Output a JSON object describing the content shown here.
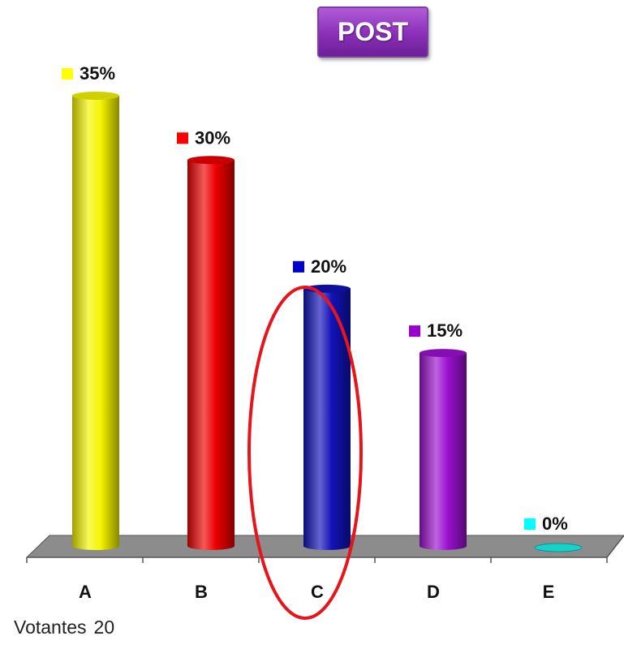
{
  "badge": {
    "label": "POST",
    "color": "#8a2fb8"
  },
  "chart_data": {
    "type": "bar",
    "categories": [
      "A",
      "B",
      "C",
      "D",
      "E"
    ],
    "values": [
      35,
      30,
      20,
      15,
      0
    ],
    "value_labels": [
      "35%",
      "30%",
      "20%",
      "15%",
      "0%"
    ],
    "colors": [
      "#f5f500",
      "#ee0000",
      "#1212b8",
      "#9b10d0",
      "#14d2cc"
    ],
    "marker_colors": [
      "#ffff00",
      "#ff0000",
      "#0000cc",
      "#9900cc",
      "#00ffff"
    ],
    "ylim": [
      0,
      35
    ],
    "grid": false,
    "legend": "none",
    "highlight": {
      "category": "C",
      "shape": "ellipse",
      "color": "#e8141c"
    }
  },
  "footer": {
    "voters_label": "Votantes",
    "voters_count": "20"
  }
}
